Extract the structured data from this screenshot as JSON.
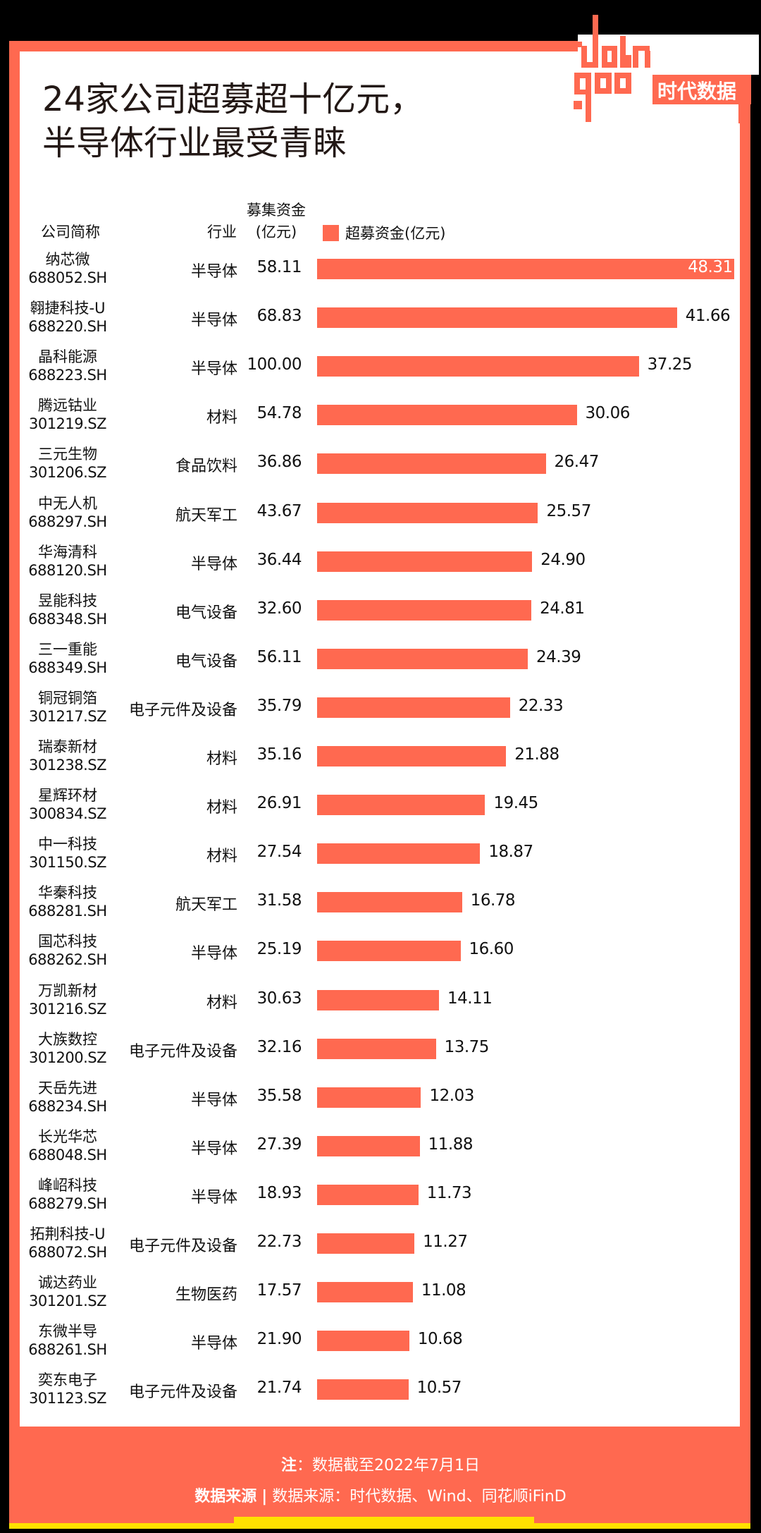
{
  "title": {
    "line1": "24家公司超募超十亿元，",
    "line2": "半导体行业最受青睐"
  },
  "logo": {
    "wordmark": "data god",
    "brand_cn": "时代数据"
  },
  "headers": {
    "company": "公司简称",
    "industry": "行业",
    "raised_line1": "募集资金",
    "raised_line2": "(亿元)",
    "legend": "超募资金(亿元)"
  },
  "colors": {
    "bar": "#FF6950",
    "frame": "#FF6950",
    "accent_yellow": "#FFE100",
    "text": "#111111"
  },
  "rows": [
    {
      "name": "纳芯微",
      "code": "688052.SH",
      "industry": "半导体",
      "raised": "58.11",
      "over": "48.31"
    },
    {
      "name": "翱捷科技-U",
      "code": "688220.SH",
      "industry": "半导体",
      "raised": "68.83",
      "over": "41.66"
    },
    {
      "name": "晶科能源",
      "code": "688223.SH",
      "industry": "半导体",
      "raised": "100.00",
      "over": "37.25"
    },
    {
      "name": "腾远钴业",
      "code": "301219.SZ",
      "industry": "材料",
      "raised": "54.78",
      "over": "30.06"
    },
    {
      "name": "三元生物",
      "code": "301206.SZ",
      "industry": "食品饮料",
      "raised": "36.86",
      "over": "26.47"
    },
    {
      "name": "中无人机",
      "code": "688297.SH",
      "industry": "航天军工",
      "raised": "43.67",
      "over": "25.57"
    },
    {
      "name": "华海清科",
      "code": "688120.SH",
      "industry": "半导体",
      "raised": "36.44",
      "over": "24.90"
    },
    {
      "name": "昱能科技",
      "code": "688348.SH",
      "industry": "电气设备",
      "raised": "32.60",
      "over": "24.81"
    },
    {
      "name": "三一重能",
      "code": "688349.SH",
      "industry": "电气设备",
      "raised": "56.11",
      "over": "24.39"
    },
    {
      "name": "铜冠铜箔",
      "code": "301217.SZ",
      "industry": "电子元件及设备",
      "raised": "35.79",
      "over": "22.33"
    },
    {
      "name": "瑞泰新材",
      "code": "301238.SZ",
      "industry": "材料",
      "raised": "35.16",
      "over": "21.88"
    },
    {
      "name": "星辉环材",
      "code": "300834.SZ",
      "industry": "材料",
      "raised": "26.91",
      "over": "19.45"
    },
    {
      "name": "中一科技",
      "code": "301150.SZ",
      "industry": "材料",
      "raised": "27.54",
      "over": "18.87"
    },
    {
      "name": "华秦科技",
      "code": "688281.SH",
      "industry": "航天军工",
      "raised": "31.58",
      "over": "16.78"
    },
    {
      "name": "国芯科技",
      "code": "688262.SH",
      "industry": "半导体",
      "raised": "25.19",
      "over": "16.60"
    },
    {
      "name": "万凯新材",
      "code": "301216.SZ",
      "industry": "材料",
      "raised": "30.63",
      "over": "14.11"
    },
    {
      "name": "大族数控",
      "code": "301200.SZ",
      "industry": "电子元件及设备",
      "raised": "32.16",
      "over": "13.75"
    },
    {
      "name": "天岳先进",
      "code": "688234.SH",
      "industry": "半导体",
      "raised": "35.58",
      "over": "12.03"
    },
    {
      "name": "长光华芯",
      "code": "688048.SH",
      "industry": "半导体",
      "raised": "27.39",
      "over": "11.88"
    },
    {
      "name": "峰岹科技",
      "code": "688279.SH",
      "industry": "半导体",
      "raised": "18.93",
      "over": "11.73"
    },
    {
      "name": "拓荆科技-U",
      "code": "688072.SH",
      "industry": "电子元件及设备",
      "raised": "22.73",
      "over": "11.27"
    },
    {
      "name": "诚达药业",
      "code": "301201.SZ",
      "industry": "生物医药",
      "raised": "17.57",
      "over": "11.08"
    },
    {
      "name": "东微半导",
      "code": "688261.SH",
      "industry": "半导体",
      "raised": "21.90",
      "over": "10.68"
    },
    {
      "name": "奕东电子",
      "code": "301123.SZ",
      "industry": "电子元件及设备",
      "raised": "21.74",
      "over": "10.57"
    }
  ],
  "footer": {
    "note_label": "注",
    "note_text": "：数据截至2022年7月1日",
    "source_label": "数据来源",
    "source_sep": "|",
    "source_text": "数据来源：时代数据、Wind、同花顺iFinD"
  },
  "chart_data": {
    "type": "bar",
    "orientation": "horizontal",
    "title": "24家公司超募超十亿元，半导体行业最受青睐",
    "legend": [
      "超募资金(亿元)"
    ],
    "legend_position": "top",
    "grid": false,
    "xlabel": "",
    "ylabel": "公司简称",
    "categories": [
      "纳芯微",
      "翱捷科技-U",
      "晶科能源",
      "腾远钴业",
      "三元生物",
      "中无人机",
      "华海清科",
      "昱能科技",
      "三一重能",
      "铜冠铜箔",
      "瑞泰新材",
      "星辉环材",
      "中一科技",
      "华秦科技",
      "国芯科技",
      "万凯新材",
      "大族数控",
      "天岳先进",
      "长光华芯",
      "峰岹科技",
      "拓荆科技-U",
      "诚达药业",
      "东微半导",
      "奕东电子"
    ],
    "series": [
      {
        "name": "超募资金(亿元)",
        "values": [
          48.31,
          41.66,
          37.25,
          30.06,
          26.47,
          25.57,
          24.9,
          24.81,
          24.39,
          22.33,
          21.88,
          19.45,
          18.87,
          16.78,
          16.6,
          14.11,
          13.75,
          12.03,
          11.88,
          11.73,
          11.27,
          11.08,
          10.68,
          10.57
        ]
      }
    ],
    "table_columns": {
      "code": [
        "688052.SH",
        "688220.SH",
        "688223.SH",
        "301219.SZ",
        "301206.SZ",
        "688297.SH",
        "688120.SH",
        "688348.SH",
        "688349.SH",
        "301217.SZ",
        "301238.SZ",
        "300834.SZ",
        "301150.SZ",
        "688281.SH",
        "688262.SH",
        "301216.SZ",
        "301200.SZ",
        "688234.SH",
        "688048.SH",
        "688279.SH",
        "688072.SH",
        "301201.SZ",
        "688261.SH",
        "301123.SZ"
      ],
      "industry": [
        "半导体",
        "半导体",
        "半导体",
        "材料",
        "食品饮料",
        "航天军工",
        "半导体",
        "电气设备",
        "电气设备",
        "电子元件及设备",
        "材料",
        "材料",
        "材料",
        "航天军工",
        "半导体",
        "材料",
        "电子元件及设备",
        "半导体",
        "半导体",
        "半导体",
        "电子元件及设备",
        "生物医药",
        "半导体",
        "电子元件及设备"
      ],
      "raised_capital": [
        58.11,
        68.83,
        100.0,
        54.78,
        36.86,
        43.67,
        36.44,
        32.6,
        56.11,
        35.79,
        35.16,
        26.91,
        27.54,
        31.58,
        25.19,
        30.63,
        32.16,
        35.58,
        27.39,
        18.93,
        22.73,
        17.57,
        21.9,
        21.74
      ]
    },
    "xlim": [
      0,
      50
    ],
    "note": "注：数据截至2022年7月1日",
    "source": "数据来源：时代数据、Wind、同花顺iFinD"
  }
}
